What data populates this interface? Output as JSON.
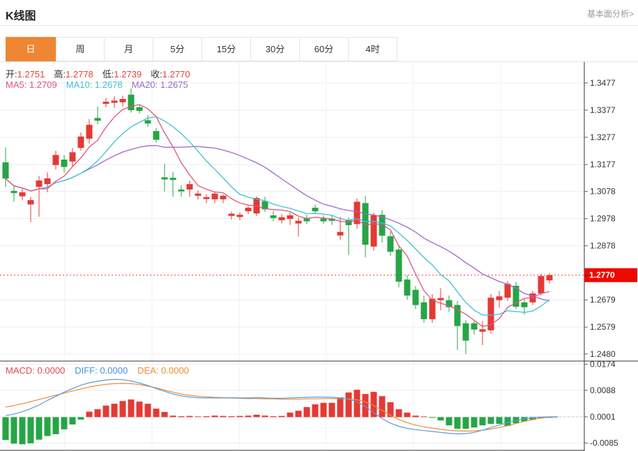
{
  "header": {
    "title": "K线图",
    "link": "基本面分析>"
  },
  "tabs": [
    {
      "label": "日",
      "active": true
    },
    {
      "label": "周",
      "active": false
    },
    {
      "label": "月",
      "active": false
    },
    {
      "label": "5分",
      "active": false
    },
    {
      "label": "15分",
      "active": false
    },
    {
      "label": "30分",
      "active": false
    },
    {
      "label": "60分",
      "active": false
    },
    {
      "label": "4时",
      "active": false
    }
  ],
  "ohlc": {
    "open_label": "开:",
    "open": "1.2751",
    "high_label": "高:",
    "high": "1.2778",
    "low_label": "低:",
    "low": "1.2739",
    "close_label": "收:",
    "close": "1.2770"
  },
  "ma": {
    "ma5_label": "MA5:",
    "ma5": "1.2709",
    "ma10_label": "MA10:",
    "ma10": "1.2678",
    "ma20_label": "MA20:",
    "ma20": "1.2675"
  },
  "macd_header": {
    "macd_label": "MACD:",
    "macd": "0.0000",
    "diff_label": "DIFF:",
    "diff": "0.0000",
    "dea_label": "DEA:",
    "dea": "0.0000"
  },
  "colors": {
    "up": "#e53935",
    "down": "#26a546",
    "ma5": "#e0537c",
    "ma10": "#3ec1d3",
    "ma20": "#a266c5",
    "diff_line": "#5b9bd5",
    "dea_line": "#ed8b3a",
    "price_line": "#ff3333",
    "price_box": "#ee0a00",
    "tab_accent": "#ee8633",
    "grid": "#ededed",
    "axis": "#333333",
    "zero_dash": "#a8cdf0"
  },
  "chart_data": {
    "type": "candlestick",
    "panels": [
      "price+MA",
      "MACD"
    ],
    "legend": [
      "MA5",
      "MA10",
      "MA20",
      "DIFF",
      "DEA",
      "MACD"
    ],
    "grid": true,
    "price_axis_ticks": [
      1.3477,
      1.3377,
      1.3277,
      1.3177,
      1.3078,
      1.2978,
      1.2878,
      1.2679,
      1.2579,
      1.248
    ],
    "price_marker": 1.277,
    "ma_periods": [
      5,
      10,
      20
    ],
    "candles_ohlc": [
      [
        1.3185,
        1.324,
        1.3095,
        1.3125
      ],
      [
        1.308,
        1.31,
        1.304,
        1.3072
      ],
      [
        1.306,
        1.3088,
        1.3045,
        1.3075
      ],
      [
        1.303,
        1.3058,
        1.2965,
        1.3046
      ],
      [
        1.3095,
        1.3135,
        1.2985,
        1.3118
      ],
      [
        1.3105,
        1.3148,
        1.3075,
        1.3126
      ],
      [
        1.3175,
        1.3228,
        1.3158,
        1.3212
      ],
      [
        1.3195,
        1.3212,
        1.3148,
        1.3168
      ],
      [
        1.3188,
        1.3238,
        1.3172,
        1.3222
      ],
      [
        1.3238,
        1.3295,
        1.3228,
        1.328
      ],
      [
        1.3272,
        1.3344,
        1.3254,
        1.3323
      ],
      [
        1.3348,
        1.339,
        1.3325,
        1.3338
      ],
      [
        1.34,
        1.3422,
        1.3388,
        1.3408
      ],
      [
        1.3404,
        1.3428,
        1.3385,
        1.3412
      ],
      [
        1.3406,
        1.343,
        1.339,
        1.3418
      ],
      [
        1.3434,
        1.3458,
        1.3368,
        1.3377
      ],
      [
        1.3388,
        1.3395,
        1.3365,
        1.3374
      ],
      [
        1.334,
        1.3358,
        1.3315,
        1.3328
      ],
      [
        1.33,
        1.3312,
        1.3258,
        1.3268
      ],
      [
        1.313,
        1.318,
        1.3078,
        1.3122
      ],
      [
        1.3128,
        1.315,
        1.3058,
        1.312
      ],
      [
        1.3085,
        1.31,
        1.3058,
        1.3078
      ],
      [
        1.3085,
        1.3118,
        1.3058,
        1.3105
      ],
      [
        1.3062,
        1.3082,
        1.3048,
        1.307
      ],
      [
        1.305,
        1.3068,
        1.3035,
        1.3057
      ],
      [
        1.3049,
        1.3075,
        1.3035,
        1.307
      ],
      [
        1.3049,
        1.3066,
        1.3035,
        1.3062
      ],
      [
        1.2988,
        1.3004,
        1.2975,
        1.2996
      ],
      [
        1.2984,
        1.3,
        1.2972,
        1.2992
      ],
      [
        1.3005,
        1.3024,
        1.2995,
        1.3018
      ],
      [
        1.2997,
        1.306,
        1.2988,
        1.3054
      ],
      [
        1.3042,
        1.3058,
        1.3002,
        1.3012
      ],
      [
        1.299,
        1.3006,
        1.2968,
        1.298
      ],
      [
        1.2972,
        1.2995,
        1.296,
        1.2983
      ],
      [
        1.2977,
        1.3,
        1.2955,
        1.299
      ],
      [
        1.296,
        1.2982,
        1.2912,
        1.297
      ],
      [
        1.298,
        1.2992,
        1.2958,
        1.2968
      ],
      [
        1.3018,
        1.303,
        1.2995,
        1.3005
      ],
      [
        1.2978,
        1.299,
        1.2958,
        1.2968
      ],
      [
        1.2978,
        1.299,
        1.2955,
        1.297
      ],
      [
        1.2916,
        1.2985,
        1.29,
        1.2929
      ],
      [
        1.2972,
        1.2982,
        1.2845,
        1.2954
      ],
      [
        1.2958,
        1.3052,
        1.294,
        1.304
      ],
      [
        1.3035,
        1.3062,
        1.2835,
        1.2882
      ],
      [
        1.2875,
        1.3,
        1.286,
        1.299
      ],
      [
        1.2992,
        1.301,
        1.289,
        1.2915
      ],
      [
        1.2913,
        1.293,
        1.284,
        1.2856
      ],
      [
        1.2864,
        1.288,
        1.2725,
        1.2746
      ],
      [
        1.2754,
        1.277,
        1.268,
        1.2695
      ],
      [
        1.2716,
        1.273,
        1.2645,
        1.266
      ],
      [
        1.267,
        1.2695,
        1.2595,
        1.2608
      ],
      [
        1.2608,
        1.27,
        1.2595,
        1.2683
      ],
      [
        1.2678,
        1.2722,
        1.264,
        1.2686
      ],
      [
        1.2678,
        1.2695,
        1.2635,
        1.2652
      ],
      [
        1.266,
        1.2675,
        1.2495,
        1.2583
      ],
      [
        1.2593,
        1.2605,
        1.248,
        1.2529
      ],
      [
        1.2593,
        1.2601,
        1.2552,
        1.257
      ],
      [
        1.2562,
        1.26,
        1.2513,
        1.2571
      ],
      [
        1.2567,
        1.27,
        1.2555,
        1.2687
      ],
      [
        1.2678,
        1.2712,
        1.265,
        1.2692
      ],
      [
        1.2687,
        1.2748,
        1.2675,
        1.2738
      ],
      [
        1.2731,
        1.2745,
        1.2645,
        1.2654
      ],
      [
        1.267,
        1.2682,
        1.2625,
        1.2652
      ],
      [
        1.267,
        1.2712,
        1.266,
        1.2703
      ],
      [
        1.2703,
        1.2775,
        1.2695,
        1.2767
      ],
      [
        1.2751,
        1.2778,
        1.2739,
        1.277
      ]
    ],
    "macd_axis_ticks": [
      0.0174,
      0.0088,
      0.0001,
      -0.0085
    ],
    "macd_hist": [
      -0.0075,
      -0.0087,
      -0.0089,
      -0.0086,
      -0.0074,
      -0.0062,
      -0.0056,
      -0.004,
      -0.0024,
      -0.0008,
      0.0018,
      0.0026,
      0.0038,
      0.0044,
      0.0053,
      0.0058,
      0.0051,
      0.0044,
      0.0028,
      0.0017,
      0.0005,
      0.0003,
      0.0004,
      0.0002,
      0.0003,
      0.0005,
      0.0004,
      0.0003,
      0.0004,
      0.0005,
      0.0008,
      0.0005,
      0.0003,
      0.0004,
      0.0015,
      0.0021,
      0.0033,
      0.0042,
      0.0047,
      0.0047,
      0.0065,
      0.0081,
      0.009,
      0.0076,
      0.0083,
      0.0069,
      0.0049,
      0.0026,
      0.0015,
      0.0005,
      0.0001,
      -0.0002,
      -0.0011,
      -0.0027,
      -0.0038,
      -0.0038,
      -0.0034,
      -0.0027,
      -0.0022,
      -0.0022,
      -0.0029,
      -0.002,
      -0.0014,
      -0.0009,
      -0.0004,
      -0.0001
    ],
    "diff_line": [
      0.0005,
      0.001,
      0.0018,
      0.0028,
      0.004,
      0.0055,
      0.0068,
      0.0082,
      0.0094,
      0.0105,
      0.0113,
      0.0118,
      0.0122,
      0.0124,
      0.0123,
      0.0119,
      0.0112,
      0.0104,
      0.0094,
      0.0085,
      0.0076,
      0.007,
      0.0066,
      0.0064,
      0.0063,
      0.0063,
      0.0063,
      0.0064,
      0.0063,
      0.0063,
      0.0064,
      0.0063,
      0.0062,
      0.0062,
      0.0063,
      0.0064,
      0.0065,
      0.0066,
      0.0066,
      0.0065,
      0.0063,
      0.0059,
      0.005,
      0.0035,
      0.0015,
      -0.0005,
      -0.002,
      -0.003,
      -0.0037,
      -0.0041,
      -0.0044,
      -0.0047,
      -0.005,
      -0.0053,
      -0.0055,
      -0.0054,
      -0.005,
      -0.0043,
      -0.0034,
      -0.0026,
      -0.0018,
      -0.0011,
      -0.0006,
      -0.0002,
      0.0,
      0.0001
    ],
    "dea_line": [
      0.0033,
      0.0038,
      0.0044,
      0.0051,
      0.0058,
      0.0065,
      0.0072,
      0.0079,
      0.0086,
      0.0093,
      0.0099,
      0.0104,
      0.0108,
      0.011,
      0.0111,
      0.011,
      0.0107,
      0.0102,
      0.0096,
      0.0089,
      0.0082,
      0.0076,
      0.0072,
      0.0069,
      0.0067,
      0.0065,
      0.0064,
      0.0063,
      0.0062,
      0.0061,
      0.0061,
      0.006,
      0.006,
      0.0059,
      0.0059,
      0.0059,
      0.006,
      0.006,
      0.0061,
      0.0061,
      0.0061,
      0.006,
      0.0057,
      0.005,
      0.0038,
      0.0022,
      0.0006,
      -0.0008,
      -0.0018,
      -0.0026,
      -0.0032,
      -0.0036,
      -0.004,
      -0.0043,
      -0.0045,
      -0.0046,
      -0.0045,
      -0.0043,
      -0.0039,
      -0.0034,
      -0.0028,
      -0.0021,
      -0.0014,
      -0.0008,
      -0.0003,
      0.0
    ]
  }
}
